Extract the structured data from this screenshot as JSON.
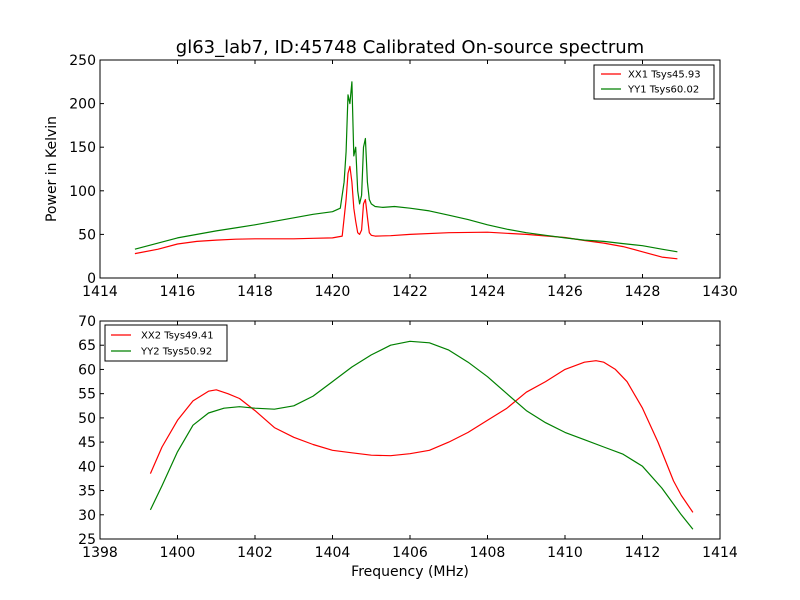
{
  "figure": {
    "title": "gl63_lab7, ID:45748 Calibrated On-source spectrum"
  },
  "colors": {
    "xx": "#ff0000",
    "yy": "#008000",
    "axes": "#000000",
    "background": "#ffffff"
  },
  "chart_data": [
    {
      "type": "line",
      "title": "gl63_lab7, ID:45748 Calibrated On-source spectrum",
      "xlabel": "",
      "ylabel": "Power in Kelvin",
      "xlim": [
        1414,
        1430
      ],
      "ylim": [
        0,
        250
      ],
      "xticks": [
        1414,
        1416,
        1418,
        1420,
        1422,
        1424,
        1426,
        1428,
        1430
      ],
      "yticks": [
        0,
        50,
        100,
        150,
        200,
        250
      ],
      "grid": false,
      "legend": "top-right",
      "series": [
        {
          "name": "XX1 Tsys45.93",
          "color": "#ff0000",
          "x": [
            1414.9,
            1415.5,
            1416.0,
            1416.5,
            1417.0,
            1417.5,
            1418.0,
            1418.5,
            1419.0,
            1419.5,
            1420.0,
            1420.25,
            1420.35,
            1420.4,
            1420.45,
            1420.5,
            1420.55,
            1420.6,
            1420.65,
            1420.7,
            1420.75,
            1420.8,
            1420.85,
            1420.9,
            1420.95,
            1421.0,
            1421.1,
            1421.5,
            1422.0,
            1423.0,
            1424.0,
            1425.0,
            1426.0,
            1426.5,
            1427.0,
            1427.5,
            1428.0,
            1428.5,
            1428.9
          ],
          "y": [
            28,
            33,
            39,
            42,
            43.5,
            44.5,
            45,
            45,
            45,
            45.5,
            46,
            48,
            90,
            120,
            128,
            110,
            80,
            65,
            52,
            50,
            55,
            85,
            90,
            70,
            52,
            49,
            48,
            48.5,
            50,
            52,
            52.5,
            50,
            46.5,
            43,
            40,
            36,
            30,
            24,
            22
          ]
        },
        {
          "name": "YY1 Tsys60.02",
          "color": "#008000",
          "x": [
            1414.9,
            1415.5,
            1416.0,
            1416.5,
            1417.0,
            1417.5,
            1418.0,
            1418.5,
            1419.0,
            1419.5,
            1420.0,
            1420.2,
            1420.3,
            1420.35,
            1420.4,
            1420.45,
            1420.5,
            1420.55,
            1420.6,
            1420.65,
            1420.7,
            1420.75,
            1420.8,
            1420.85,
            1420.9,
            1420.95,
            1421.0,
            1421.1,
            1421.3,
            1421.6,
            1422.0,
            1422.5,
            1423.0,
            1423.5,
            1424.0,
            1424.5,
            1425.0,
            1425.5,
            1426.0,
            1426.5,
            1427.0,
            1427.5,
            1428.0,
            1428.5,
            1428.9
          ],
          "y": [
            33,
            40,
            46,
            50,
            54,
            57.5,
            61,
            65,
            69,
            73,
            76,
            80,
            110,
            145,
            210,
            200,
            225,
            140,
            150,
            100,
            85,
            95,
            150,
            160,
            110,
            90,
            85,
            82,
            81,
            82,
            80,
            77,
            72,
            67,
            61,
            56,
            52,
            49,
            46,
            43.5,
            42,
            39.5,
            37,
            33,
            30
          ]
        }
      ]
    },
    {
      "type": "line",
      "title": "",
      "xlabel": "Frequency (MHz)",
      "ylabel": "",
      "xlim": [
        1398,
        1414
      ],
      "ylim": [
        25,
        70
      ],
      "xticks": [
        1398,
        1400,
        1402,
        1404,
        1406,
        1408,
        1410,
        1412,
        1414
      ],
      "yticks": [
        25,
        30,
        35,
        40,
        45,
        50,
        55,
        60,
        65,
        70
      ],
      "grid": false,
      "legend": "top-left",
      "series": [
        {
          "name": "XX2 Tsys49.41",
          "color": "#ff0000",
          "x": [
            1399.3,
            1399.6,
            1400.0,
            1400.4,
            1400.8,
            1401.0,
            1401.3,
            1401.6,
            1402.0,
            1402.5,
            1403.0,
            1403.5,
            1404.0,
            1404.5,
            1405.0,
            1405.5,
            1406.0,
            1406.5,
            1407.0,
            1407.5,
            1408.0,
            1408.5,
            1409.0,
            1409.5,
            1410.0,
            1410.5,
            1410.8,
            1411.0,
            1411.3,
            1411.6,
            1412.0,
            1412.4,
            1412.8,
            1413.0,
            1413.3
          ],
          "y": [
            38.5,
            44,
            49.5,
            53.5,
            55.5,
            55.8,
            55,
            54,
            51.5,
            48,
            46,
            44.5,
            43.3,
            42.8,
            42.3,
            42.2,
            42.6,
            43.3,
            45,
            47,
            49.5,
            52,
            55.3,
            57.5,
            60,
            61.5,
            61.8,
            61.5,
            60,
            57.5,
            52,
            45,
            37,
            34,
            30.5
          ]
        },
        {
          "name": "YY2 Tsys50.92",
          "color": "#008000",
          "x": [
            1399.3,
            1399.6,
            1400.0,
            1400.4,
            1400.8,
            1401.2,
            1401.6,
            1402.0,
            1402.5,
            1403.0,
            1403.5,
            1404.0,
            1404.5,
            1405.0,
            1405.5,
            1406.0,
            1406.5,
            1407.0,
            1407.5,
            1408.0,
            1408.5,
            1409.0,
            1409.5,
            1410.0,
            1410.5,
            1411.0,
            1411.5,
            1412.0,
            1412.5,
            1413.0,
            1413.3
          ],
          "y": [
            31,
            36,
            43,
            48.5,
            51,
            52,
            52.3,
            52,
            51.8,
            52.5,
            54.5,
            57.5,
            60.5,
            63,
            65,
            65.8,
            65.5,
            64,
            61.5,
            58.5,
            55,
            51.5,
            49,
            47,
            45.5,
            44,
            42.5,
            40,
            35.5,
            30,
            27
          ]
        }
      ]
    }
  ]
}
